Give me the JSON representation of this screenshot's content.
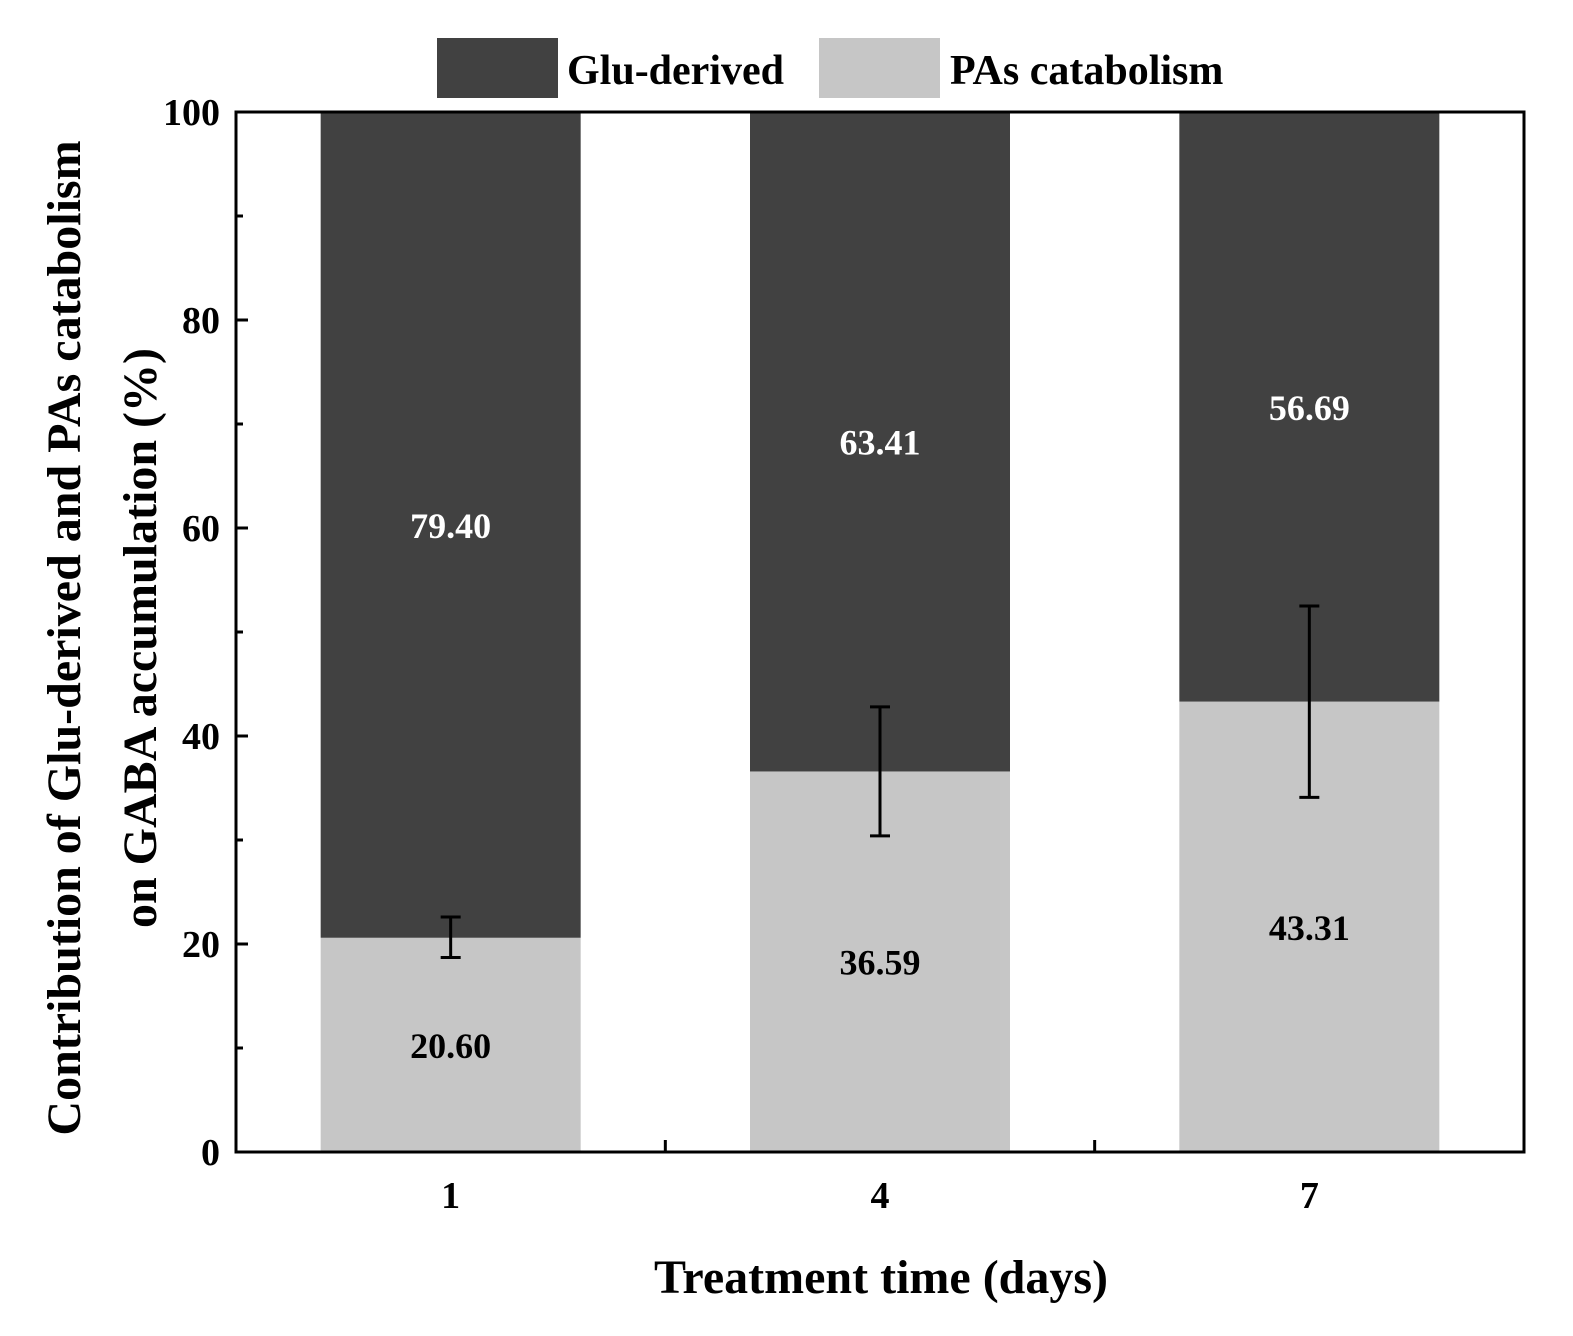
{
  "chart_data": {
    "type": "bar",
    "stacked": true,
    "categories": [
      "1",
      "4",
      "7"
    ],
    "series": [
      {
        "name": "PAs catabolism",
        "values": [
          20.6,
          36.59,
          43.31
        ],
        "color": "#c6c6c6",
        "label_color": "#000000"
      },
      {
        "name": "Glu-derived",
        "values": [
          79.4,
          63.41,
          56.69
        ],
        "color": "#414141",
        "label_color": "#ffffff"
      }
    ],
    "value_labels": {
      "PAs catabolism": [
        "20.60",
        "36.59",
        "43.31"
      ],
      "Glu-derived": [
        "79.40",
        "63.41",
        "56.69"
      ]
    },
    "error_bars": [
      {
        "category": "1",
        "center": 20.6,
        "low": 18.7,
        "high": 22.6
      },
      {
        "category": "4",
        "center": 36.59,
        "low": 30.4,
        "high": 42.8
      },
      {
        "category": "7",
        "center": 43.31,
        "low": 34.1,
        "high": 52.5
      }
    ],
    "xlabel": "Treatment time (days)",
    "ylabel_line1": "Contribution of Glu-derived and PAs catabolism",
    "ylabel_line2": "on GABA accumulation (%)",
    "ylim": [
      0,
      100
    ],
    "yticks": [
      0,
      20,
      40,
      60,
      80,
      100
    ],
    "yticks_minor": [
      10,
      30,
      50,
      70,
      90
    ],
    "ytick_labels": [
      "0",
      "20",
      "40",
      "60",
      "80",
      "100"
    ],
    "legend": [
      {
        "label": "Glu-derived",
        "color": "#414141"
      },
      {
        "label": "PAs catabolism",
        "color": "#c6c6c6"
      }
    ],
    "legend_position": "top-center"
  }
}
